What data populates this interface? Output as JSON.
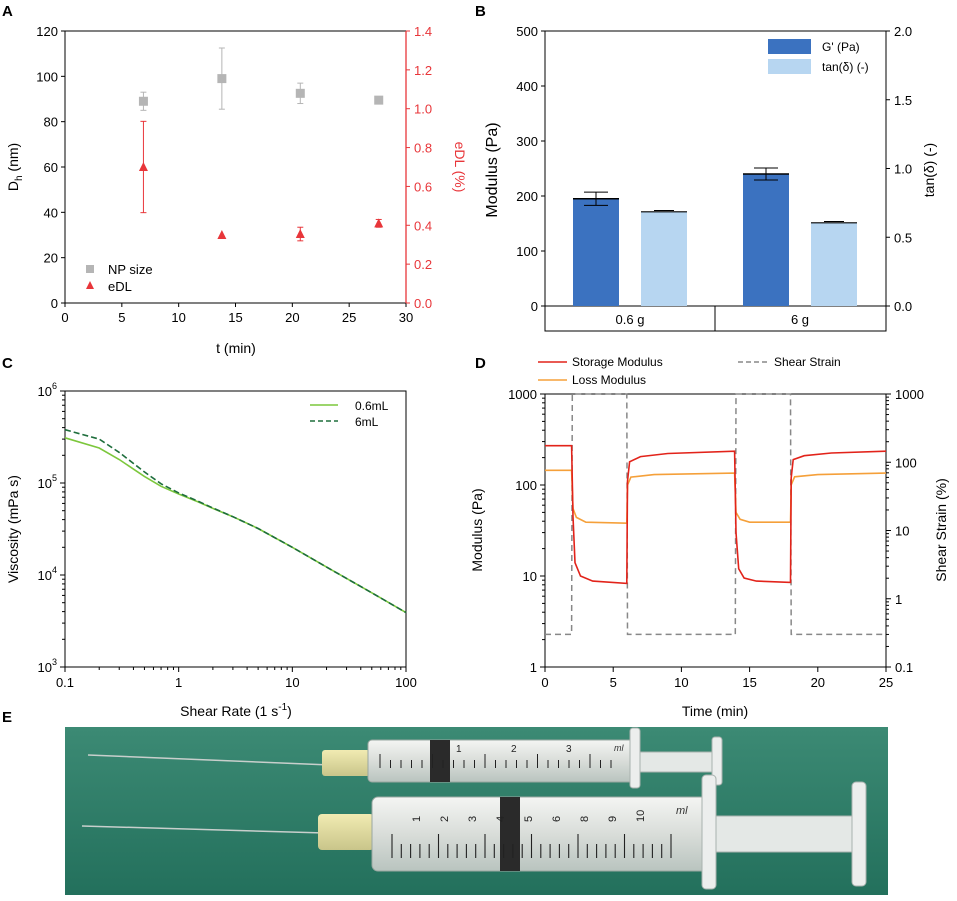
{
  "colors": {
    "gray": "#b5b5b5",
    "red": "#e8363a",
    "dark_blue": "#3b72c0",
    "light_blue": "#b7d6f1",
    "light_green": "#7cc73c",
    "dark_green": "#1e6e3c",
    "storage_red": "#e2231a",
    "loss_orange": "#f5a03a",
    "strain_gray": "#888888",
    "photo_bg": "#2f7e6a"
  },
  "panels": {
    "A": {
      "label": "A"
    },
    "B": {
      "label": "B"
    },
    "C": {
      "label": "C"
    },
    "D": {
      "label": "D"
    },
    "E": {
      "label": "E"
    }
  },
  "chart_data": [
    {
      "panel": "A",
      "type": "scatter",
      "xlabel": "t (min)",
      "ylabel_main": "D",
      "ylabel_sub": "h",
      "ylabel_unit": " (nm)",
      "y2label": "eDL (%)",
      "xlim": [
        0,
        30
      ],
      "ylim": [
        0,
        120
      ],
      "y2lim": [
        0,
        1.4
      ],
      "xticks": [
        "0",
        "5",
        "10",
        "15",
        "20",
        "25",
        "30"
      ],
      "yticks": [
        "0",
        "20",
        "40",
        "60",
        "80",
        "100",
        "120"
      ],
      "y2ticks": [
        "0.0",
        "0.2",
        "0.4",
        "0.6",
        "0.8",
        "1.0",
        "1.2",
        "1.4"
      ],
      "series": [
        {
          "name": "NP size",
          "axis": "left",
          "marker": "square",
          "x": [
            6.9,
            13.8,
            20.7,
            27.6
          ],
          "y": [
            89,
            99,
            92.5,
            89.5
          ],
          "err": [
            4,
            13.5,
            4.5,
            0
          ]
        },
        {
          "name": "eDL",
          "axis": "right",
          "marker": "triangle",
          "x": [
            6.9,
            13.8,
            20.7,
            27.6
          ],
          "y": [
            0.7,
            0.35,
            0.355,
            0.41
          ],
          "err": [
            0.235,
            0,
            0.035,
            0.02
          ]
        }
      ],
      "legend": [
        "NP size",
        "eDL"
      ]
    },
    {
      "panel": "B",
      "type": "bar",
      "ylabel": "Modulus (Pa)",
      "y2label": "tan(δ) (-)",
      "ylim": [
        0,
        500
      ],
      "y2lim": [
        0,
        2.0
      ],
      "yticks": [
        "0",
        "100",
        "200",
        "300",
        "400",
        "500"
      ],
      "y2ticks": [
        "0.0",
        "0.5",
        "1.0",
        "1.5",
        "2.0"
      ],
      "categories": [
        "0.6 g",
        "6 g"
      ],
      "series": [
        {
          "name": "G' (Pa)",
          "axis": "left",
          "values": [
            195,
            240
          ],
          "err": [
            12,
            11
          ]
        },
        {
          "name": "tan(δ) (-)",
          "axis": "right",
          "values": [
            0.685,
            0.605
          ],
          "err": [
            0.01,
            0.01
          ]
        }
      ],
      "legend": [
        "G' (Pa)",
        "tan(δ) (-)"
      ]
    },
    {
      "panel": "C",
      "type": "line",
      "xscale": "log",
      "yscale": "log",
      "xlabel_main": "Shear Rate (1 s",
      "xlabel_sup": "-1",
      "xlabel_end": ")",
      "ylabel": "Viscosity (mPa s)",
      "xlim": [
        0.1,
        100
      ],
      "ylim": [
        1000,
        1000000
      ],
      "xticks": [
        "0.1",
        "1",
        "10",
        "100"
      ],
      "ytick_base": "10",
      "ytick_exps": [
        "3",
        "4",
        "5",
        "6"
      ],
      "series": [
        {
          "name": "0.6mL",
          "style": "solid",
          "x": [
            0.1,
            0.2,
            0.3,
            0.5,
            0.7,
            1,
            1.5,
            2,
            3,
            5,
            10,
            20,
            50,
            100
          ],
          "y": [
            310000,
            240000,
            180000,
            118000,
            92000,
            76000,
            62000,
            53000,
            43000,
            32000,
            20000,
            12200,
            6400,
            3900
          ]
        },
        {
          "name": "6mL",
          "style": "dashed",
          "x": [
            0.1,
            0.2,
            0.3,
            0.5,
            0.7,
            1,
            1.5,
            2,
            3,
            5,
            10,
            20,
            50,
            100
          ],
          "y": [
            380000,
            300000,
            215000,
            132000,
            98000,
            78000,
            63000,
            53500,
            43000,
            32000,
            20000,
            12200,
            6400,
            3900
          ]
        }
      ],
      "legend": [
        "0.6mL",
        "6mL"
      ]
    },
    {
      "panel": "D",
      "type": "line",
      "yscale": "log",
      "y2scale": "log",
      "xlabel": "Time (min)",
      "ylabel": "Modulus (Pa)",
      "y2label": "Shear Strain (%)",
      "xlim": [
        0,
        25
      ],
      "ylim": [
        1,
        1000
      ],
      "y2lim": [
        0.1,
        1000
      ],
      "xticks": [
        "0",
        "5",
        "10",
        "15",
        "20",
        "25"
      ],
      "yticks": [
        "1",
        "10",
        "100",
        "1000"
      ],
      "y2ticks": [
        "0.1",
        "1",
        "10",
        "100",
        "1000"
      ],
      "series": [
        {
          "name": "Storage Modulus",
          "axis": "left",
          "x": [
            0,
            1.95,
            2.05,
            2.2,
            2.6,
            3.5,
            6.0,
            6.05,
            6.2,
            7,
            9,
            13.9,
            14.0,
            14.2,
            14.6,
            15.5,
            18.0,
            18.05,
            18.2,
            19,
            21,
            25
          ],
          "y": [
            270,
            270,
            45,
            14,
            10,
            8.8,
            8.3,
            110,
            180,
            205,
            222,
            235,
            30,
            12,
            9.5,
            8.8,
            8.5,
            120,
            190,
            210,
            225,
            235
          ]
        },
        {
          "name": "Loss Modulus",
          "axis": "left",
          "x": [
            0,
            1.95,
            2.05,
            2.3,
            3,
            6.0,
            6.05,
            6.3,
            8,
            13.9,
            14.0,
            14.3,
            15,
            18.0,
            18.05,
            18.3,
            20,
            25
          ],
          "y": [
            145,
            145,
            55,
            44,
            39,
            38,
            100,
            122,
            130,
            135,
            50,
            42,
            39,
            39,
            100,
            123,
            130,
            135
          ]
        },
        {
          "name": "Shear Strain",
          "axis": "right",
          "style": "dashed",
          "x": [
            0,
            1.95,
            2.0,
            6.0,
            6.05,
            13.95,
            14.0,
            18.0,
            18.05,
            25
          ],
          "y": [
            0.3,
            0.3,
            1000,
            1000,
            0.3,
            0.3,
            1000,
            1000,
            0.3,
            0.3
          ]
        }
      ],
      "legend": [
        "Storage Modulus",
        "Loss Modulus",
        "Shear Strain"
      ]
    }
  ],
  "photo": {
    "description_label": "syringes",
    "small_scale_numbers": [
      "1",
      "2",
      "3"
    ],
    "large_scale_numbers": [
      "1",
      "2",
      "3",
      "4",
      "5",
      "6",
      "8",
      "9",
      "10"
    ],
    "small_unit": "ml",
    "large_unit": "ml"
  }
}
